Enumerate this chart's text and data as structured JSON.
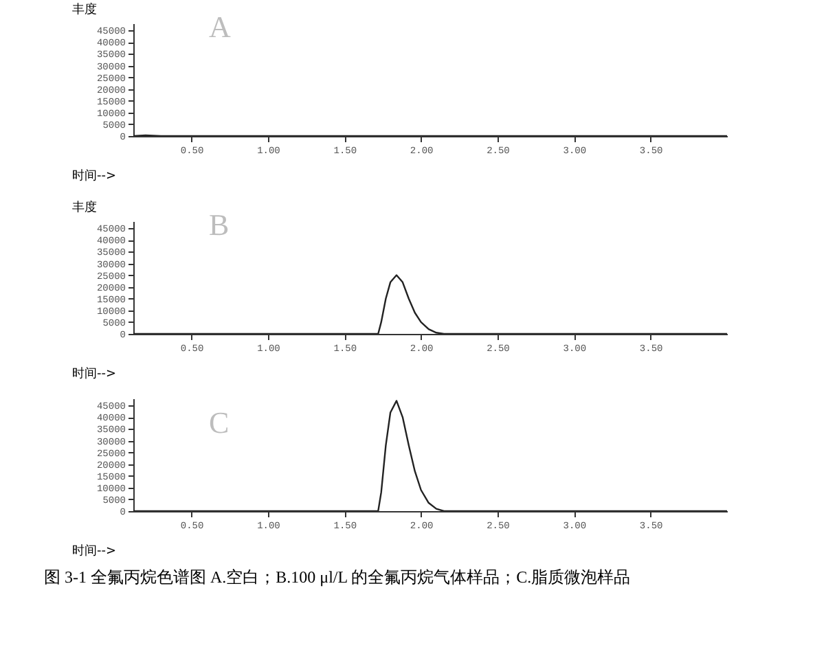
{
  "chart_data": [
    {
      "type": "line",
      "title": "A",
      "xlabel": "时间-->",
      "ylabel": "丰度",
      "x": [
        0.12,
        0.2,
        0.3,
        0.5,
        1.0,
        1.5,
        1.8,
        2.0,
        2.5,
        3.0,
        3.5,
        4.0
      ],
      "series": [
        {
          "color": "#222222",
          "values": [
            0,
            300,
            0,
            0,
            0,
            0,
            0,
            0,
            0,
            0,
            0,
            0
          ]
        }
      ],
      "xlim": [
        0.12,
        4.0
      ],
      "ylim": [
        0,
        48000
      ],
      "xticks": [
        {
          "value": 0.5,
          "label": "0.50"
        },
        {
          "value": 1.0,
          "label": "1.00"
        },
        {
          "value": 1.5,
          "label": "1.50"
        },
        {
          "value": 2.0,
          "label": "2.00"
        },
        {
          "value": 2.5,
          "label": "2.50"
        },
        {
          "value": 3.0,
          "label": "3.00"
        },
        {
          "value": 3.5,
          "label": "3.50"
        }
      ],
      "yticks": [
        0,
        5000,
        10000,
        15000,
        20000,
        25000,
        30000,
        35000,
        40000,
        45000
      ]
    },
    {
      "type": "line",
      "title": "B",
      "xlabel": "时间-->",
      "ylabel": "丰度",
      "x": [
        0.12,
        1.0,
        1.72,
        1.74,
        1.77,
        1.8,
        1.84,
        1.88,
        1.92,
        1.96,
        2.0,
        2.05,
        2.1,
        2.15,
        3.0,
        4.0
      ],
      "series": [
        {
          "color": "#222222",
          "values": [
            0,
            0,
            0,
            5000,
            15000,
            22000,
            25000,
            22000,
            15000,
            9000,
            5000,
            2000,
            500,
            0,
            0,
            0
          ]
        }
      ],
      "xlim": [
        0.12,
        4.0
      ],
      "ylim": [
        0,
        48000
      ],
      "xticks": [
        {
          "value": 0.5,
          "label": "0.50"
        },
        {
          "value": 1.0,
          "label": "1.00"
        },
        {
          "value": 1.5,
          "label": "1.50"
        },
        {
          "value": 2.0,
          "label": "2.00"
        },
        {
          "value": 2.5,
          "label": "2.50"
        },
        {
          "value": 3.0,
          "label": "3.00"
        },
        {
          "value": 3.5,
          "label": "3.50"
        }
      ],
      "yticks": [
        0,
        5000,
        10000,
        15000,
        20000,
        25000,
        30000,
        35000,
        40000,
        45000
      ]
    },
    {
      "type": "line",
      "title": "C",
      "xlabel": "时间-->",
      "x": [
        0.12,
        1.0,
        1.72,
        1.74,
        1.77,
        1.8,
        1.84,
        1.88,
        1.92,
        1.96,
        2.0,
        2.05,
        2.1,
        2.15,
        3.0,
        4.0
      ],
      "series": [
        {
          "color": "#222222",
          "values": [
            0,
            0,
            0,
            8000,
            28000,
            42000,
            47000,
            40000,
            28000,
            17000,
            9000,
            3500,
            1000,
            0,
            0,
            0
          ]
        }
      ],
      "xlim": [
        0.12,
        4.0
      ],
      "ylim": [
        0,
        48000
      ],
      "xticks": [
        {
          "value": 0.5,
          "label": "0.50"
        },
        {
          "value": 1.0,
          "label": "1.00"
        },
        {
          "value": 1.5,
          "label": "1.50"
        },
        {
          "value": 2.0,
          "label": "2.00"
        },
        {
          "value": 2.5,
          "label": "2.50"
        },
        {
          "value": 3.0,
          "label": "3.00"
        },
        {
          "value": 3.5,
          "label": "3.50"
        }
      ],
      "yticks": [
        0,
        5000,
        10000,
        15000,
        20000,
        25000,
        30000,
        35000,
        40000,
        45000
      ],
      "annotations": [
        "图 3-1  全氟丙烷色谱图  A.空白；B.100 μl/L 的全氟丙烷气体样品；C.脂质微泡样品"
      ]
    }
  ]
}
